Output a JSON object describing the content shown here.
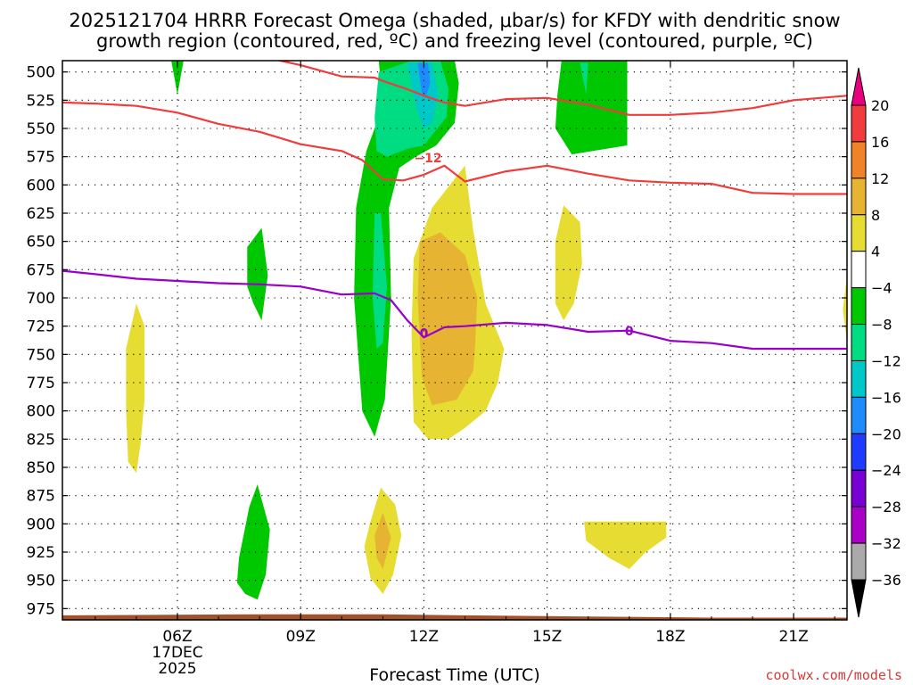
{
  "chart_data": {
    "type": "heatmap",
    "title_line1": "2025121704 HRRR Forecast Omega (shaded, μbar/s) for KFDY with dendritic snow",
    "title_line2": "growth region (contoured, red, ºC) and freezing level (contoured, purple, ºC)",
    "xlabel": "Forecast Time (UTC)",
    "x_range_hours": [
      3.2,
      22.3
    ],
    "x_ticks": [
      {
        "hour": 6,
        "label": "06Z",
        "sub1": "17DEC",
        "sub2": "2025"
      },
      {
        "hour": 9,
        "label": "09Z"
      },
      {
        "hour": 12,
        "label": "12Z"
      },
      {
        "hour": 15,
        "label": "15Z"
      },
      {
        "hour": 18,
        "label": "18Z"
      },
      {
        "hour": 21,
        "label": "21Z"
      }
    ],
    "y_axis": "pressure (mb)",
    "y_range_mb": [
      490,
      985
    ],
    "y_ticks": [
      500,
      525,
      550,
      575,
      600,
      625,
      650,
      675,
      700,
      725,
      750,
      775,
      800,
      825,
      850,
      875,
      900,
      925,
      950,
      975
    ],
    "colorbar": {
      "labels": [
        "20",
        "16",
        "12",
        "8",
        "4",
        "−4",
        "−8",
        "−12",
        "−16",
        "−20",
        "−24",
        "−28",
        "−32",
        "−36"
      ],
      "colors": [
        "#e8007f",
        "#f03c3c",
        "#f08228",
        "#e6b432",
        "#e6dc32",
        "#ffffff",
        "#00c800",
        "#00dc82",
        "#00c8c8",
        "#1e8cff",
        "#1e3cff",
        "#7800d2",
        "#aa00c8",
        "#aaaaaa",
        "#000000"
      ]
    },
    "omega_regions": [
      {
        "color": "#00c800",
        "value": -4,
        "points": [
          [
            5.85,
            490
          ],
          [
            6.15,
            490
          ],
          [
            6.0,
            520
          ]
        ]
      },
      {
        "color": "#00c800",
        "value": -4,
        "points": [
          [
            10.3,
            490
          ],
          [
            10.9,
            490
          ],
          [
            11.0,
            530
          ],
          [
            10.6,
            570
          ],
          [
            10.35,
            620
          ],
          [
            10.3,
            700
          ],
          [
            10.5,
            800
          ],
          [
            10.8,
            823
          ],
          [
            11.05,
            790
          ],
          [
            11.2,
            700
          ],
          [
            11.15,
            620
          ],
          [
            11.4,
            585
          ],
          [
            11.8,
            575
          ],
          [
            12.3,
            565
          ],
          [
            12.75,
            545
          ],
          [
            12.85,
            510
          ],
          [
            12.75,
            490
          ]
        ]
      },
      {
        "color": "#00dc82",
        "value": -8,
        "points": [
          [
            10.9,
            500
          ],
          [
            11.7,
            490
          ],
          [
            12.4,
            490
          ],
          [
            12.6,
            515
          ],
          [
            12.55,
            540
          ],
          [
            12.0,
            565
          ],
          [
            11.6,
            568
          ],
          [
            11.1,
            575
          ],
          [
            10.85,
            570
          ],
          [
            10.8,
            540
          ]
        ]
      },
      {
        "color": "#00c8c8",
        "value": -12,
        "points": [
          [
            11.6,
            492
          ],
          [
            12.2,
            492
          ],
          [
            12.35,
            520
          ],
          [
            12.2,
            545
          ],
          [
            12.0,
            550
          ],
          [
            11.8,
            530
          ]
        ]
      },
      {
        "color": "#1e8cff",
        "value": -16,
        "points": [
          [
            11.85,
            492
          ],
          [
            12.1,
            492
          ],
          [
            12.15,
            510
          ],
          [
            12.05,
            522
          ],
          [
            11.95,
            518
          ]
        ]
      },
      {
        "color": "#00dc82",
        "value": -8,
        "points": [
          [
            10.8,
            625
          ],
          [
            10.95,
            625
          ],
          [
            11.1,
            690
          ],
          [
            11.0,
            740
          ],
          [
            10.85,
            745
          ],
          [
            10.75,
            700
          ]
        ]
      },
      {
        "color": "#00c800",
        "value": -4,
        "points": [
          [
            15.35,
            490
          ],
          [
            16.95,
            490
          ],
          [
            16.95,
            525
          ],
          [
            16.95,
            565
          ],
          [
            15.6,
            573
          ],
          [
            15.2,
            550
          ],
          [
            15.25,
            520
          ]
        ]
      },
      {
        "color": "#00dc82",
        "value": -8,
        "points": [
          [
            15.8,
            492
          ],
          [
            16.0,
            492
          ],
          [
            15.95,
            520
          ]
        ]
      },
      {
        "color": "#00c800",
        "value": -4,
        "points": [
          [
            7.7,
            655
          ],
          [
            8.05,
            638
          ],
          [
            8.2,
            680
          ],
          [
            8.05,
            720
          ],
          [
            7.85,
            705
          ],
          [
            7.7,
            690
          ]
        ]
      },
      {
        "color": "#00c800",
        "value": -4,
        "points": [
          [
            7.5,
            930
          ],
          [
            7.75,
            885
          ],
          [
            7.95,
            865
          ],
          [
            8.25,
            905
          ],
          [
            8.15,
            945
          ],
          [
            7.95,
            967
          ],
          [
            7.65,
            962
          ],
          [
            7.45,
            952
          ]
        ]
      },
      {
        "color": "#e6dc32",
        "value": 4,
        "points": [
          [
            11.75,
            665
          ],
          [
            12.2,
            620
          ],
          [
            13.0,
            583
          ],
          [
            13.2,
            640
          ],
          [
            13.5,
            705
          ],
          [
            13.95,
            745
          ],
          [
            13.8,
            775
          ],
          [
            13.5,
            800
          ],
          [
            13.0,
            815
          ],
          [
            12.6,
            825
          ],
          [
            12.1,
            825
          ],
          [
            11.75,
            810
          ],
          [
            11.7,
            730
          ]
        ]
      },
      {
        "color": "#e6b432",
        "value": 8,
        "points": [
          [
            11.9,
            650
          ],
          [
            12.4,
            642
          ],
          [
            13.0,
            662
          ],
          [
            13.3,
            700
          ],
          [
            13.25,
            740
          ],
          [
            13.2,
            765
          ],
          [
            12.8,
            790
          ],
          [
            12.2,
            795
          ],
          [
            11.95,
            770
          ],
          [
            11.85,
            700
          ]
        ]
      },
      {
        "color": "#e6dc32",
        "value": 4,
        "points": [
          [
            5.0,
            705
          ],
          [
            5.2,
            725
          ],
          [
            5.2,
            790
          ],
          [
            5.1,
            830
          ],
          [
            5.0,
            855
          ],
          [
            4.8,
            845
          ],
          [
            4.75,
            800
          ],
          [
            4.75,
            745
          ]
        ]
      },
      {
        "color": "#e6dc32",
        "value": 4,
        "points": [
          [
            15.2,
            650
          ],
          [
            15.4,
            618
          ],
          [
            15.8,
            633
          ],
          [
            15.85,
            670
          ],
          [
            15.65,
            705
          ],
          [
            15.4,
            720
          ],
          [
            15.2,
            705
          ]
        ]
      },
      {
        "color": "#e6dc32",
        "value": 4,
        "points": [
          [
            10.7,
            898
          ],
          [
            10.95,
            868
          ],
          [
            11.3,
            883
          ],
          [
            11.45,
            910
          ],
          [
            11.25,
            945
          ],
          [
            11.0,
            962
          ],
          [
            10.7,
            948
          ],
          [
            10.55,
            920
          ]
        ]
      },
      {
        "color": "#e6b432",
        "value": 8,
        "points": [
          [
            10.8,
            910
          ],
          [
            11.0,
            890
          ],
          [
            11.2,
            912
          ],
          [
            11.0,
            940
          ],
          [
            10.85,
            930
          ]
        ]
      },
      {
        "color": "#e6dc32",
        "value": 4,
        "points": [
          [
            15.9,
            898
          ],
          [
            17.9,
            898
          ],
          [
            17.9,
            912
          ],
          [
            17.4,
            925
          ],
          [
            17.0,
            940
          ],
          [
            16.5,
            930
          ],
          [
            15.95,
            915
          ]
        ]
      },
      {
        "color": "#e6dc32",
        "value": 4,
        "points": [
          [
            22.3,
            680
          ],
          [
            22.3,
            740
          ],
          [
            22.2,
            710
          ]
        ]
      }
    ],
    "contours": [
      {
        "name": "dendritic upper (-17)",
        "color": "#f03c3c",
        "points": [
          [
            5.4,
            476
          ],
          [
            6.0,
            478
          ],
          [
            7.0,
            481
          ],
          [
            8.0,
            486
          ],
          [
            9.0,
            494
          ],
          [
            10.0,
            504
          ],
          [
            10.8,
            505
          ],
          [
            11.0,
            508
          ],
          [
            11.5,
            514
          ],
          [
            12.0,
            521
          ],
          [
            12.5,
            527
          ],
          [
            13.0,
            530
          ],
          [
            14.0,
            524
          ],
          [
            15.0,
            523
          ],
          [
            16.0,
            529
          ],
          [
            17.0,
            538
          ],
          [
            18.0,
            538
          ],
          [
            19.0,
            536
          ],
          [
            20.0,
            532
          ],
          [
            21.0,
            525
          ],
          [
            22.3,
            521
          ]
        ]
      },
      {
        "name": "dendritic lower (-12)",
        "color": "#f03c3c",
        "label": "−12",
        "label_at": [
          12.1,
          580
        ],
        "points": [
          [
            3.2,
            527
          ],
          [
            4.0,
            528
          ],
          [
            5.0,
            530
          ],
          [
            6.0,
            536
          ],
          [
            7.0,
            546
          ],
          [
            8.0,
            553
          ],
          [
            9.0,
            564
          ],
          [
            10.0,
            570
          ],
          [
            10.5,
            578
          ],
          [
            11.0,
            595
          ],
          [
            11.5,
            596
          ],
          [
            12.0,
            591
          ],
          [
            12.5,
            583
          ],
          [
            13.0,
            597
          ],
          [
            14.0,
            588
          ],
          [
            15.0,
            583
          ],
          [
            16.0,
            590
          ],
          [
            17.0,
            596
          ],
          [
            18.0,
            598
          ],
          [
            19.0,
            599
          ],
          [
            20.0,
            607
          ],
          [
            21.0,
            608
          ],
          [
            22.3,
            608
          ]
        ]
      },
      {
        "name": "freezing level (0)",
        "color": "#9a00cc",
        "label": "0",
        "label_at": [
          12.0,
          735
        ],
        "points": [
          [
            3.2,
            676
          ],
          [
            4.0,
            679
          ],
          [
            5.0,
            683
          ],
          [
            6.0,
            685
          ],
          [
            7.0,
            687
          ],
          [
            8.0,
            688
          ],
          [
            9.0,
            690
          ],
          [
            10.0,
            697
          ],
          [
            10.8,
            696
          ],
          [
            11.2,
            702
          ],
          [
            11.6,
            720
          ],
          [
            12.0,
            735
          ],
          [
            12.5,
            726
          ],
          [
            13.0,
            725
          ],
          [
            14.0,
            722
          ],
          [
            15.0,
            724
          ],
          [
            16.0,
            730
          ],
          [
            17.0,
            729
          ],
          [
            18.0,
            738
          ],
          [
            19.0,
            740
          ],
          [
            20.0,
            745
          ],
          [
            21.0,
            745
          ],
          [
            22.3,
            745
          ]
        ]
      }
    ],
    "terrain_color": "#a0522d"
  },
  "credit": "coolwx.com/models"
}
